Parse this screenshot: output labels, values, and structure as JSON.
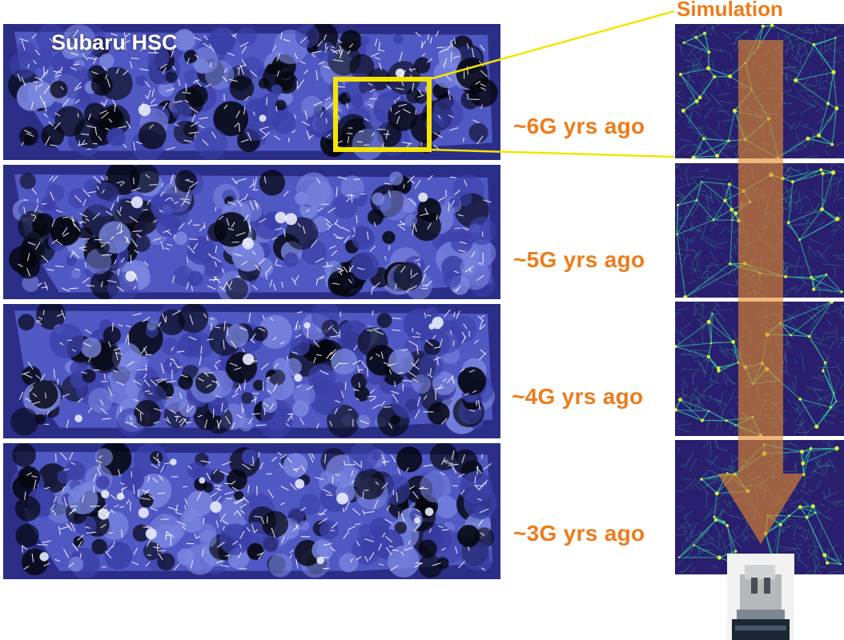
{
  "observation": {
    "label": "Subaru HSC",
    "background_color": "#2b2e86",
    "panels": [
      {
        "id": "6g",
        "age_label": "~6G yrs ago"
      },
      {
        "id": "5g",
        "age_label": "~5G yrs ago"
      },
      {
        "id": "4g",
        "age_label": "~4G yrs ago"
      },
      {
        "id": "3g",
        "age_label": "~3G yrs ago"
      }
    ]
  },
  "simulation": {
    "title": "Simulation",
    "background_color": "#2a1f6e",
    "filament_color": "#2fb59a",
    "node_color": "#d8ee3a"
  },
  "colors": {
    "label_orange": "#ee7b1a",
    "zoom_box": "#f5e400",
    "arrow": "#e58a2a"
  },
  "icons": {
    "telescope": "telescope-photo"
  }
}
